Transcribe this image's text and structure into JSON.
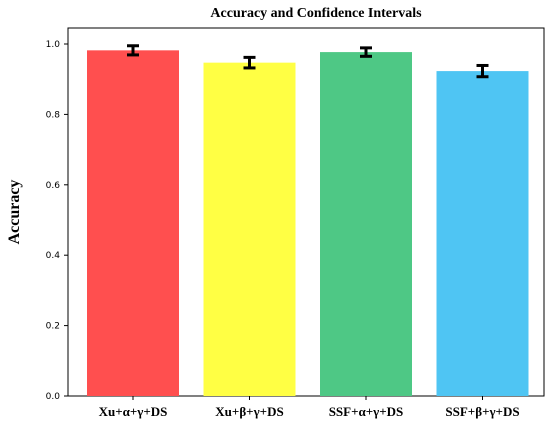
{
  "chart_data": {
    "type": "bar",
    "title": "Accuracy and Confidence Intervals",
    "xlabel": "",
    "ylabel": "Accuracy",
    "ylim": [
      0,
      1.0
    ],
    "yticks": [
      "0.0",
      "0.2",
      "0.4",
      "0.6",
      "0.8",
      "1.0"
    ],
    "categories": [
      "Xu+α+γ+DS",
      "Xu+β+γ+DS",
      "SSF+α+γ+DS",
      "SSF+β+γ+DS"
    ],
    "values": [
      0.982,
      0.947,
      0.977,
      0.923
    ],
    "errors": [
      0.013,
      0.015,
      0.012,
      0.016
    ],
    "colors": [
      "#ff4f4f",
      "#ffff44",
      "#4ec885",
      "#4fc5f3"
    ],
    "grid": false,
    "legend": "none"
  }
}
